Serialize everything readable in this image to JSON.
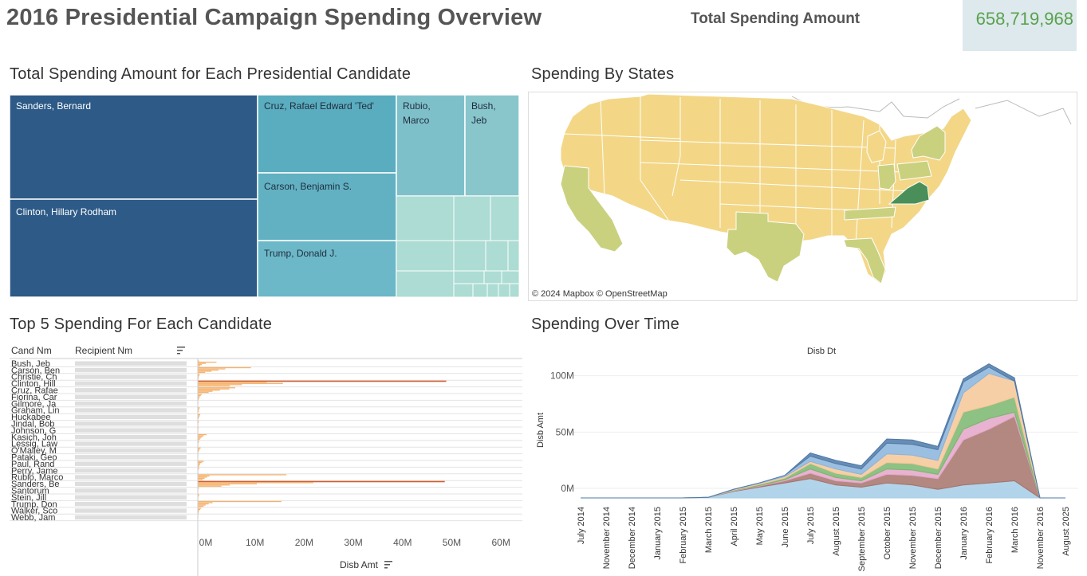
{
  "page": {
    "title": "2016 Presidential Campaign Spending Overview",
    "kpi_label": "Total Spending Amount",
    "kpi_value": "658,719,968"
  },
  "colors": {
    "treemap_dark": "#2d5a87",
    "treemap_mid": "#57a9bf",
    "treemap_light": "#7ec0c9",
    "treemap_pale": "#acdcd3",
    "map_low": "#f3d787",
    "map_mid": "#c9d17f",
    "map_high": "#4a8f59",
    "bar": "#f6b26b",
    "bar_highlight": "#d45d2e"
  },
  "treemap": {
    "title": "Total Spending Amount for Each Presidential Candidate",
    "tiles": [
      {
        "label": "Sanders, Bernard",
        "color": "#2d5a87"
      },
      {
        "label": "Clinton, Hillary Rodham",
        "color": "#2d5a87"
      },
      {
        "label": "Cruz, Rafael Edward 'Ted'",
        "color": "#5aacbf"
      },
      {
        "label": "Carson, Benjamin S.",
        "color": "#62b1c3"
      },
      {
        "label": "Trump, Donald J.",
        "color": "#6cb8c8"
      },
      {
        "label": "Rubio, Marco",
        "color": "#7ec0c9"
      },
      {
        "label": "Bush, Jeb",
        "color": "#88c6cc"
      }
    ]
  },
  "map": {
    "title": "Spending By States",
    "attribution": "© 2024 Mapbox  © OpenStreetMap"
  },
  "chart_data": [
    {
      "type": "bar",
      "title": "Top 5 Spending For Each Candidate",
      "column_headers": [
        "Cand Nm",
        "Recipient Nm"
      ],
      "xlabel": "Disb Amt",
      "x_ticks": [
        "0M",
        "10M",
        "20M",
        "30M",
        "40M",
        "50M",
        "60M"
      ],
      "xlim": [
        0,
        65
      ],
      "unit": "M",
      "candidates": [
        {
          "name": "Bush, Jeb",
          "values": [
            0.3,
            3.8,
            1.6,
            0.8,
            0.5
          ]
        },
        {
          "name": "Carson, Ben",
          "values": [
            10.8,
            5.6,
            4.2,
            2.8,
            1.5
          ]
        },
        {
          "name": "Christie, Ch",
          "values": [
            0.4,
            0.3,
            0.2,
            0.2,
            0.1
          ]
        },
        {
          "name": "Clinton, Hill",
          "values": [
            50.5,
            14.0,
            17.3,
            9.0,
            6.5
          ]
        },
        {
          "name": "Cruz, Rafae",
          "values": [
            7.6,
            6.4,
            4.5,
            3.0,
            2.2
          ]
        },
        {
          "name": "Fiorina, Car",
          "values": [
            0.8,
            0.6,
            0.4,
            0.3,
            0.2
          ]
        },
        {
          "name": "Gilmore, Ja",
          "values": [
            0.1,
            0.1,
            0.1,
            0.0,
            0.0
          ]
        },
        {
          "name": "Graham, Lin",
          "values": [
            0.4,
            0.3,
            0.2,
            0.2,
            0.1
          ]
        },
        {
          "name": "Huckabee",
          "values": [
            0.5,
            0.4,
            0.3,
            0.2,
            0.1
          ]
        },
        {
          "name": "Jindal, Bob",
          "values": [
            0.2,
            0.2,
            0.1,
            0.1,
            0.1
          ]
        },
        {
          "name": "Johnson, G",
          "values": [
            0.2,
            0.1,
            0.1,
            0.1,
            0.1
          ]
        },
        {
          "name": "Kasich, Joh",
          "values": [
            1.8,
            1.2,
            0.9,
            0.6,
            0.4
          ]
        },
        {
          "name": "Lessig, Law",
          "values": [
            0.3,
            0.2,
            0.1,
            0.1,
            0.1
          ]
        },
        {
          "name": "O'Malley, M",
          "values": [
            0.6,
            0.4,
            0.3,
            0.2,
            0.1
          ]
        },
        {
          "name": "Pataki, Geo",
          "values": [
            0.1,
            0.1,
            0.1,
            0.0,
            0.0
          ]
        },
        {
          "name": "Paul, Rand",
          "values": [
            1.2,
            0.8,
            0.5,
            0.4,
            0.3
          ]
        },
        {
          "name": "Perry, Jame",
          "values": [
            0.3,
            0.2,
            0.1,
            0.1,
            0.1
          ]
        },
        {
          "name": "Rubio, Marco",
          "values": [
            18.0,
            2.4,
            1.9,
            1.4,
            1.0
          ]
        },
        {
          "name": "Sanders, Be",
          "values": [
            50.2,
            23.5,
            12.0,
            6.5,
            4.8
          ]
        },
        {
          "name": "Santorum",
          "values": [
            0.2,
            0.1,
            0.1,
            0.1,
            0.0
          ]
        },
        {
          "name": "Stein, Jill",
          "values": [
            0.3,
            0.2,
            0.1,
            0.1,
            0.1
          ]
        },
        {
          "name": "Trump, Don",
          "values": [
            17.0,
            3.0,
            2.2,
            1.6,
            1.2
          ]
        },
        {
          "name": "Walker, Sco",
          "values": [
            0.7,
            0.5,
            0.3,
            0.2,
            0.2
          ]
        },
        {
          "name": "Webb, Jam",
          "values": [
            0.1,
            0.1,
            0.1,
            0.0,
            0.0
          ]
        }
      ]
    },
    {
      "type": "area",
      "title": "Spending Over Time",
      "header": "Disb Dt",
      "ylabel": "Disb Amt",
      "y_ticks": [
        "0M",
        "50M",
        "100M"
      ],
      "ylim": [
        0,
        130
      ],
      "categories": [
        "July 2014",
        "November 2014",
        "December 2014",
        "January 2015",
        "February 2015",
        "March 2015",
        "April 2015",
        "May 2015",
        "June 2015",
        "July 2015",
        "August 2015",
        "September 2015",
        "October 2015",
        "November 2015",
        "December 2015",
        "January 2016",
        "February 2016",
        "March 2016",
        "November 2016",
        "August 2025"
      ],
      "series": [
        {
          "color": "#a5cce6",
          "values": [
            0,
            0,
            0,
            0,
            0,
            0.5,
            6,
            10,
            14,
            18,
            12,
            10,
            14,
            12,
            8,
            12,
            14,
            16,
            0,
            0
          ]
        },
        {
          "color": "#a5736b",
          "values": [
            0,
            0,
            0,
            0,
            0,
            0,
            0.5,
            1,
            2,
            5,
            4,
            4,
            8,
            9,
            10,
            42,
            50,
            60,
            0,
            0
          ]
        },
        {
          "color": "#e4a6c8",
          "values": [
            0,
            0,
            0,
            0,
            0,
            0,
            0.3,
            0.5,
            1,
            4,
            3,
            2,
            5,
            5,
            4,
            10,
            10,
            4,
            0,
            0
          ]
        },
        {
          "color": "#7ab66e",
          "values": [
            0,
            0,
            0,
            0,
            0,
            0,
            0.5,
            1,
            1.5,
            5,
            4,
            3,
            6,
            6,
            5,
            16,
            12,
            14,
            0,
            0
          ]
        },
        {
          "color": "#f6c796",
          "values": [
            0,
            0,
            0,
            0,
            0,
            0,
            0.5,
            1,
            1.5,
            2,
            4,
            3,
            8,
            8,
            8,
            18,
            30,
            15,
            0,
            0
          ]
        },
        {
          "color": "#8ab4dc",
          "values": [
            0,
            0,
            0,
            0,
            0,
            0,
            0.3,
            0.5,
            1,
            5,
            5,
            5,
            10,
            10,
            10,
            10,
            6,
            0,
            0,
            0
          ]
        },
        {
          "color": "#4e79a7",
          "values": [
            0,
            0,
            0,
            0,
            0,
            0,
            0,
            0,
            0,
            3,
            3,
            3,
            4,
            4,
            3,
            3,
            3,
            3,
            0,
            0
          ]
        }
      ]
    }
  ]
}
